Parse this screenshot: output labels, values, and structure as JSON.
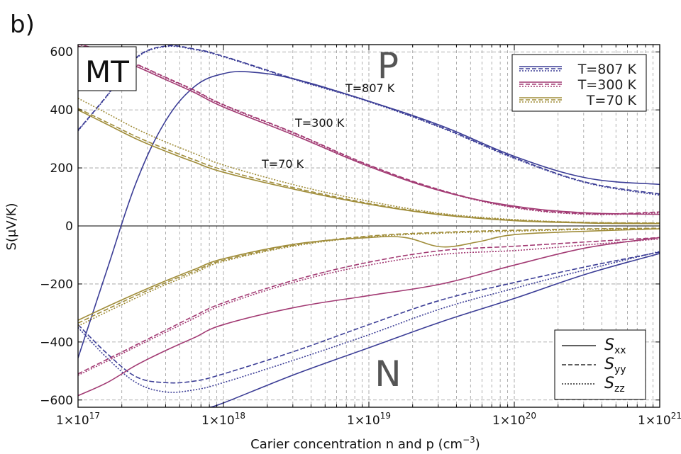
{
  "panel_label": "b)",
  "chart_data": {
    "type": "line",
    "title": "",
    "xlabel": "Carier concentration n and p (cm",
    "xlabel_sup": "−3",
    "xlabel_end": ")",
    "ylabel": "S(μV/K)",
    "xscale": "log",
    "xlim": [
      1e+17,
      1e+21
    ],
    "ylim": [
      -625,
      625
    ],
    "grid": true,
    "x_tick_labels": [
      {
        "mant": "1×10",
        "exp": "17"
      },
      {
        "mant": "1×10",
        "exp": "18"
      },
      {
        "mant": "1×10",
        "exp": "19"
      },
      {
        "mant": "1×10",
        "exp": "20"
      },
      {
        "mant": "1×10",
        "exp": "21"
      }
    ],
    "y_ticks": [
      600,
      400,
      200,
      0,
      -200,
      -400,
      -600
    ],
    "y_tick_labels": [
      "600",
      "400",
      "200",
      "0",
      "−200",
      "−400",
      "−600"
    ],
    "colors": {
      "T807": "#3b3d96",
      "T300": "#a23a73",
      "T70": "#a08d3a"
    },
    "annotations": {
      "model": "MT",
      "p_region": "P",
      "n_region": "N",
      "t807": "T=807 K",
      "t300": "T=300 K",
      "t70": "T=70 K"
    },
    "legend_temperature": {
      "placement": "top-right",
      "entries": [
        "T=807 K",
        "T=300 K",
        "T=70 K"
      ]
    },
    "legend_component": {
      "placement": "bottom-right",
      "entries": [
        {
          "base": "S",
          "sub": "xx",
          "style": "solid"
        },
        {
          "base": "S",
          "sub": "yy",
          "style": "dashed"
        },
        {
          "base": "S",
          "sub": "zz",
          "style": "dotted"
        }
      ]
    },
    "series": [
      {
        "T": "807",
        "carrier": "p",
        "component": "xx",
        "color": "T807",
        "dash": "solid",
        "points": [
          [
            17,
            -455
          ],
          [
            17.2,
            -150
          ],
          [
            17.4,
            150
          ],
          [
            17.6,
            360
          ],
          [
            17.8,
            480
          ],
          [
            18,
            525
          ],
          [
            18.2,
            530
          ],
          [
            18.5,
            505
          ],
          [
            19,
            430
          ],
          [
            19.5,
            345
          ],
          [
            20,
            240
          ],
          [
            20.5,
            165
          ],
          [
            21,
            143
          ]
        ]
      },
      {
        "T": "807",
        "carrier": "p",
        "component": "yy",
        "color": "T807",
        "dash": "dashed",
        "points": [
          [
            17,
            330
          ],
          [
            17.2,
            450
          ],
          [
            17.4,
            580
          ],
          [
            17.6,
            620
          ],
          [
            17.8,
            610
          ],
          [
            18,
            585
          ],
          [
            18.5,
            505
          ],
          [
            19,
            430
          ],
          [
            19.5,
            340
          ],
          [
            20,
            235
          ],
          [
            20.5,
            150
          ],
          [
            21,
            110
          ]
        ]
      },
      {
        "T": "807",
        "carrier": "p",
        "component": "zz",
        "color": "T807",
        "dash": "dotted",
        "points": [
          [
            17,
            328
          ],
          [
            17.2,
            448
          ],
          [
            17.4,
            578
          ],
          [
            17.6,
            618
          ],
          [
            17.8,
            608
          ],
          [
            18,
            583
          ],
          [
            18.5,
            503
          ],
          [
            19,
            428
          ],
          [
            19.5,
            338
          ],
          [
            20,
            233
          ],
          [
            20.5,
            148
          ],
          [
            21,
            106
          ]
        ]
      },
      {
        "T": "300",
        "carrier": "p",
        "component": "xx",
        "color": "T300",
        "dash": "solid",
        "points": [
          [
            17,
            620
          ],
          [
            17.2,
            590
          ],
          [
            17.4,
            550
          ],
          [
            17.6,
            505
          ],
          [
            17.8,
            460
          ],
          [
            18,
            410
          ],
          [
            18.5,
            310
          ],
          [
            19,
            205
          ],
          [
            19.5,
            120
          ],
          [
            20,
            68
          ],
          [
            20.5,
            45
          ],
          [
            21,
            40
          ]
        ]
      },
      {
        "T": "300",
        "carrier": "p",
        "component": "yy",
        "color": "T300",
        "dash": "dashed",
        "points": [
          [
            17,
            628
          ],
          [
            17.2,
            598
          ],
          [
            17.4,
            558
          ],
          [
            17.6,
            513
          ],
          [
            17.8,
            468
          ],
          [
            18,
            418
          ],
          [
            18.5,
            318
          ],
          [
            19,
            210
          ],
          [
            19.5,
            123
          ],
          [
            20,
            65
          ],
          [
            20.5,
            42
          ],
          [
            21,
            48
          ]
        ]
      },
      {
        "T": "300",
        "carrier": "p",
        "component": "zz",
        "color": "T300",
        "dash": "dotted",
        "points": [
          [
            17,
            626
          ],
          [
            17.2,
            596
          ],
          [
            17.4,
            556
          ],
          [
            17.6,
            511
          ],
          [
            17.8,
            466
          ],
          [
            18,
            416
          ],
          [
            18.5,
            316
          ],
          [
            19,
            208
          ],
          [
            19.5,
            121
          ],
          [
            20,
            63
          ],
          [
            20.5,
            40
          ],
          [
            21,
            45
          ]
        ]
      },
      {
        "T": "70",
        "carrier": "p",
        "component": "xx",
        "color": "T70",
        "dash": "solid",
        "points": [
          [
            17,
            400
          ],
          [
            17.2,
            350
          ],
          [
            17.4,
            300
          ],
          [
            17.6,
            258
          ],
          [
            17.8,
            220
          ],
          [
            18,
            185
          ],
          [
            18.5,
            125
          ],
          [
            19,
            75
          ],
          [
            19.5,
            38
          ],
          [
            20,
            18
          ],
          [
            20.5,
            10
          ],
          [
            21,
            8
          ]
        ]
      },
      {
        "T": "70",
        "carrier": "p",
        "component": "yy",
        "color": "T70",
        "dash": "dashed",
        "points": [
          [
            17,
            405
          ],
          [
            17.2,
            357
          ],
          [
            17.4,
            308
          ],
          [
            17.6,
            266
          ],
          [
            17.8,
            228
          ],
          [
            18,
            193
          ],
          [
            18.5,
            130
          ],
          [
            19,
            78
          ],
          [
            19.5,
            40
          ],
          [
            20,
            20
          ],
          [
            20.5,
            12
          ],
          [
            21,
            10
          ]
        ]
      },
      {
        "T": "70",
        "carrier": "p",
        "component": "zz",
        "color": "T70",
        "dash": "dotted",
        "points": [
          [
            17,
            440
          ],
          [
            17.2,
            388
          ],
          [
            17.4,
            335
          ],
          [
            17.6,
            290
          ],
          [
            17.8,
            250
          ],
          [
            18,
            210
          ],
          [
            18.5,
            140
          ],
          [
            19,
            85
          ],
          [
            19.5,
            43
          ],
          [
            20,
            22
          ],
          [
            20.5,
            12
          ],
          [
            21,
            10
          ]
        ]
      },
      {
        "T": "807",
        "carrier": "n",
        "component": "xx",
        "color": "T807",
        "dash": "solid",
        "points": [
          [
            17.9,
            -625
          ],
          [
            18,
            -610
          ],
          [
            18.5,
            -510
          ],
          [
            19,
            -420
          ],
          [
            19.5,
            -330
          ],
          [
            20,
            -250
          ],
          [
            20.5,
            -165
          ],
          [
            21,
            -95
          ]
        ]
      },
      {
        "T": "807",
        "carrier": "n",
        "component": "yy",
        "color": "T807",
        "dash": "dashed",
        "points": [
          [
            17,
            -340
          ],
          [
            17.2,
            -440
          ],
          [
            17.4,
            -520
          ],
          [
            17.6,
            -540
          ],
          [
            17.8,
            -535
          ],
          [
            18,
            -510
          ],
          [
            18.5,
            -430
          ],
          [
            19,
            -340
          ],
          [
            19.5,
            -255
          ],
          [
            20,
            -195
          ],
          [
            20.5,
            -140
          ],
          [
            21,
            -90
          ]
        ]
      },
      {
        "T": "807",
        "carrier": "n",
        "component": "zz",
        "color": "T807",
        "dash": "dotted",
        "points": [
          [
            17,
            -350
          ],
          [
            17.2,
            -455
          ],
          [
            17.4,
            -540
          ],
          [
            17.6,
            -572
          ],
          [
            17.8,
            -565
          ],
          [
            18,
            -540
          ],
          [
            18.5,
            -460
          ],
          [
            19,
            -375
          ],
          [
            19.5,
            -285
          ],
          [
            20,
            -215
          ],
          [
            20.5,
            -150
          ],
          [
            21,
            -88
          ]
        ]
      },
      {
        "T": "300",
        "carrier": "n",
        "component": "xx",
        "color": "T300",
        "dash": "solid",
        "points": [
          [
            17,
            -585
          ],
          [
            17.2,
            -540
          ],
          [
            17.4,
            -480
          ],
          [
            17.6,
            -430
          ],
          [
            17.8,
            -385
          ],
          [
            18,
            -340
          ],
          [
            18.5,
            -280
          ],
          [
            19,
            -240
          ],
          [
            19.5,
            -200
          ],
          [
            20,
            -135
          ],
          [
            20.5,
            -75
          ],
          [
            21,
            -40
          ]
        ]
      },
      {
        "T": "300",
        "carrier": "n",
        "component": "yy",
        "color": "T300",
        "dash": "dashed",
        "points": [
          [
            17,
            -510
          ],
          [
            17.2,
            -460
          ],
          [
            17.4,
            -410
          ],
          [
            17.6,
            -360
          ],
          [
            17.8,
            -310
          ],
          [
            18,
            -265
          ],
          [
            18.5,
            -185
          ],
          [
            19,
            -125
          ],
          [
            19.5,
            -85
          ],
          [
            20,
            -70
          ],
          [
            20.5,
            -55
          ],
          [
            21,
            -40
          ]
        ]
      },
      {
        "T": "300",
        "carrier": "n",
        "component": "zz",
        "color": "T300",
        "dash": "dotted",
        "points": [
          [
            17,
            -515
          ],
          [
            17.2,
            -466
          ],
          [
            17.4,
            -416
          ],
          [
            17.6,
            -367
          ],
          [
            17.8,
            -318
          ],
          [
            18,
            -272
          ],
          [
            18.5,
            -192
          ],
          [
            19,
            -135
          ],
          [
            19.5,
            -98
          ],
          [
            20,
            -85
          ],
          [
            20.5,
            -65
          ],
          [
            21,
            -45
          ]
        ]
      },
      {
        "T": "70",
        "carrier": "n",
        "component": "xx",
        "color": "T70",
        "dash": "solid",
        "points": [
          [
            17,
            -325
          ],
          [
            17.2,
            -278
          ],
          [
            17.4,
            -233
          ],
          [
            17.6,
            -190
          ],
          [
            17.8,
            -150
          ],
          [
            18,
            -113
          ],
          [
            18.5,
            -62
          ],
          [
            19,
            -40
          ],
          [
            19.25,
            -40
          ],
          [
            19.5,
            -72
          ],
          [
            19.75,
            -55
          ],
          [
            20,
            -30
          ],
          [
            20.5,
            -18
          ],
          [
            21,
            -10
          ]
        ]
      },
      {
        "T": "70",
        "carrier": "n",
        "component": "yy",
        "color": "T70",
        "dash": "dashed",
        "points": [
          [
            17,
            -335
          ],
          [
            17.2,
            -287
          ],
          [
            17.4,
            -240
          ],
          [
            17.6,
            -196
          ],
          [
            17.8,
            -156
          ],
          [
            18,
            -118
          ],
          [
            18.5,
            -65
          ],
          [
            19,
            -35
          ],
          [
            19.5,
            -22
          ],
          [
            20,
            -15
          ],
          [
            20.5,
            -10
          ],
          [
            21,
            -8
          ]
        ]
      },
      {
        "T": "70",
        "carrier": "n",
        "component": "zz",
        "color": "T70",
        "dash": "dotted",
        "points": [
          [
            17,
            -345
          ],
          [
            17.2,
            -296
          ],
          [
            17.4,
            -248
          ],
          [
            17.6,
            -203
          ],
          [
            17.8,
            -162
          ],
          [
            18,
            -122
          ],
          [
            18.5,
            -68
          ],
          [
            19,
            -38
          ],
          [
            19.5,
            -25
          ],
          [
            20,
            -18
          ],
          [
            20.5,
            -12
          ],
          [
            21,
            -10
          ]
        ]
      }
    ]
  }
}
